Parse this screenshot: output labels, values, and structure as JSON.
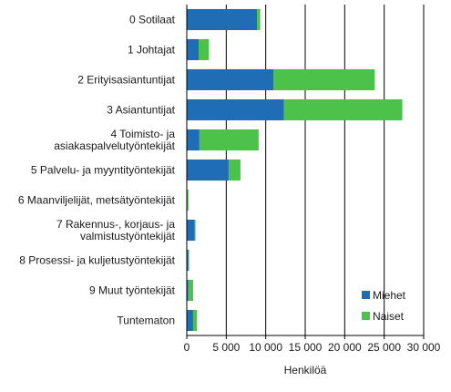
{
  "chart_data": {
    "type": "bar",
    "orientation": "horizontal",
    "stacked": true,
    "categories": [
      "0 Sotilaat",
      "1 Johtajat",
      "2 Erityisasiantuntijat",
      "3 Asiantuntijat",
      "4 Toimisto- ja asiakaspalvelutyöntekijät",
      "5 Palvelu- ja myyntityöntekijät",
      "6 Maanviljelijät, metsätyöntekijät",
      "7 Rakennus-, korjaus- ja valmistustyöntekijät",
      "8 Prosessi- ja kuljetustyöntekijät",
      "9 Muut työntekijät",
      "Tuntematon"
    ],
    "category_label_lines": [
      [
        "0 Sotilaat"
      ],
      [
        "1 Johtajat"
      ],
      [
        "2 Erityisasiantuntijat"
      ],
      [
        "3 Asiantuntijat"
      ],
      [
        "4 Toimisto-  ja",
        "asiakaspalvelutyöntekijät"
      ],
      [
        "5 Palvelu-  ja myyntityöntekijät"
      ],
      [
        "6 Maanviljelijät, metsätyöntekijät"
      ],
      [
        "7 Rakennus-,  korjaus-  ja",
        "valmistustyöntekijät"
      ],
      [
        "8 Prosessi- ja kuljetustyöntekijät"
      ],
      [
        "9 Muut työntekijät"
      ],
      [
        "Tuntematon"
      ]
    ],
    "series": [
      {
        "name": "Miehet",
        "color": "#1f6db5",
        "values": [
          8900,
          1500,
          11000,
          12300,
          1600,
          5300,
          100,
          1000,
          200,
          200,
          800
        ]
      },
      {
        "name": "Naiset",
        "color": "#4cc24a",
        "values": [
          400,
          1300,
          12800,
          15000,
          7500,
          1500,
          100,
          100,
          100,
          600,
          500
        ]
      }
    ],
    "xlabel": "Henkilöä",
    "ylabel": "",
    "title": "",
    "xlim": [
      0,
      30000
    ],
    "xticks": [
      0,
      5000,
      10000,
      15000,
      20000,
      25000,
      30000
    ],
    "xtick_labels": [
      "0",
      "5 000",
      "10 000",
      "15 000",
      "20 000",
      "25 000",
      "30 000"
    ],
    "grid": "vertical",
    "legend_position": "bottom-right"
  }
}
